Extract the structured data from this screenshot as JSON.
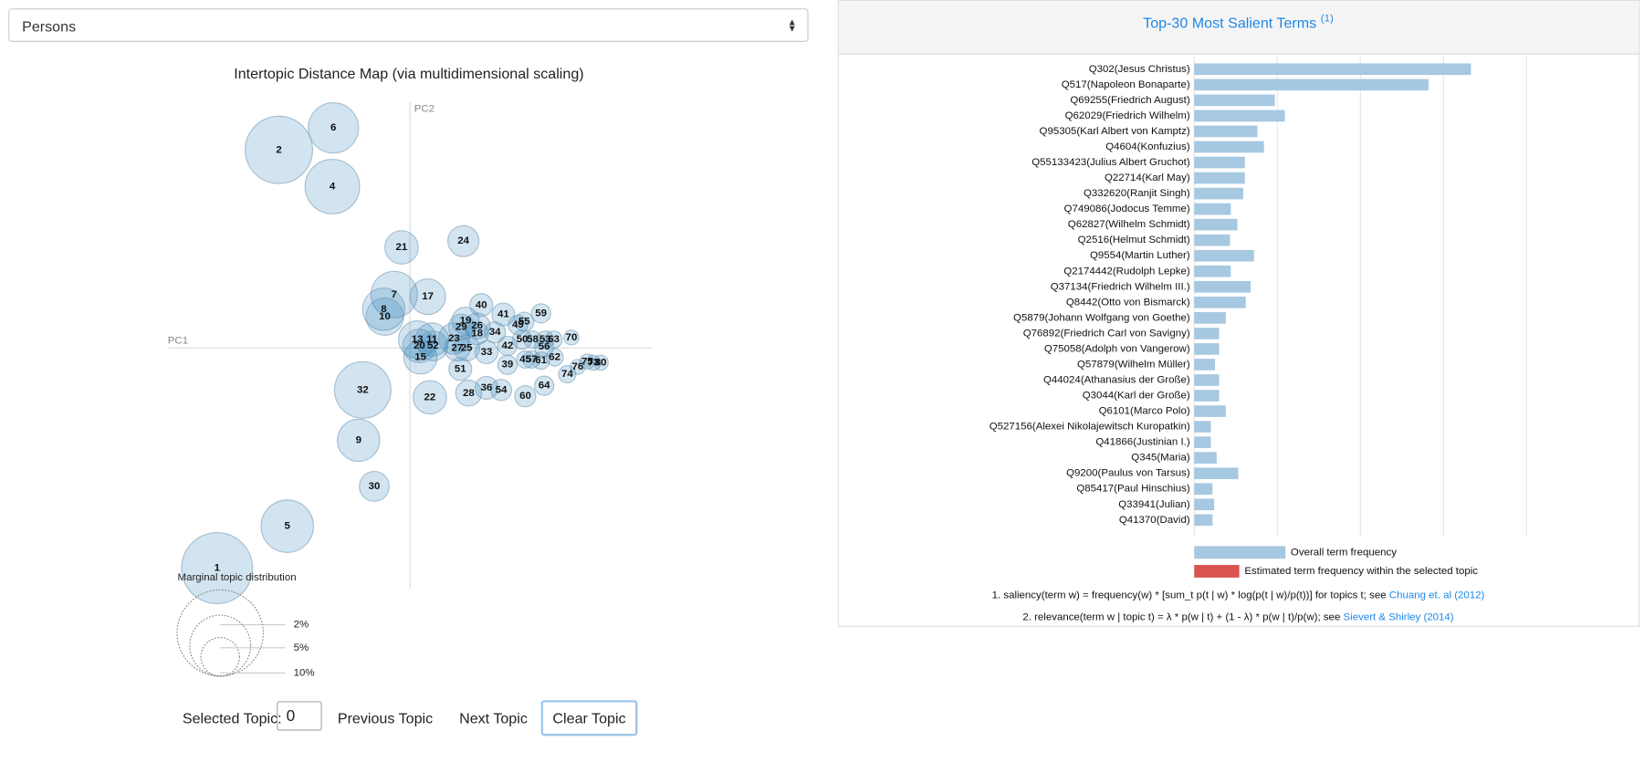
{
  "topic_selector": "Persons",
  "chart_data": [
    {
      "type": "bubble",
      "title": "Intertopic Distance Map (via multidimensional scaling)",
      "x_label": "PC1",
      "y_label": "PC2",
      "xlim": [
        -231,
        231
      ],
      "ylim": [
        -230,
        235
      ],
      "color": "#1f77b4",
      "labels": [
        "1",
        "2",
        "4",
        "5",
        "6",
        "32",
        "9",
        "7",
        "8",
        "10",
        "21",
        "24",
        "17",
        "22",
        "30",
        "13",
        "15",
        "20",
        "11",
        "52",
        "23",
        "27",
        "25",
        "19",
        "29",
        "26",
        "18",
        "33",
        "40",
        "41",
        "34",
        "28",
        "51",
        "36",
        "54",
        "60",
        "39",
        "42",
        "49",
        "55",
        "59",
        "50",
        "58",
        "53",
        "56",
        "45",
        "57",
        "61",
        "62",
        "63",
        "64",
        "70",
        "74",
        "76",
        "75",
        "73",
        "80"
      ],
      "x": [
        -184,
        -125,
        -74,
        -117,
        -73,
        -45,
        -49,
        -15,
        -25,
        -24,
        -8,
        51,
        17,
        19,
        -34,
        7,
        10,
        9,
        21,
        22,
        42,
        45,
        54,
        53,
        49,
        64,
        64,
        73,
        68,
        89,
        81,
        56,
        48,
        73,
        87,
        110,
        93,
        93,
        103,
        109,
        125,
        107,
        117,
        129,
        128,
        110,
        116,
        125,
        138,
        137,
        128,
        154,
        150,
        160,
        169,
        175,
        182
      ],
      "y": [
        -210,
        189,
        154,
        -170,
        210,
        -40,
        -88,
        51,
        37,
        30,
        96,
        102,
        49,
        -47,
        -132,
        8,
        -9,
        2,
        8,
        2,
        9,
        0,
        0,
        26,
        20,
        21,
        14,
        -4,
        41,
        32,
        15,
        -43,
        -20,
        -38,
        -40,
        -46,
        -16,
        2,
        22,
        25,
        33,
        8,
        8,
        8,
        1,
        -11,
        -11,
        -12,
        -9,
        8,
        -36,
        10,
        -25,
        -18,
        -13,
        -14,
        -14
      ],
      "sizes": [
        6.8,
        6.1,
        4.0,
        3.7,
        3.4,
        4.3,
        2.4,
        2.9,
        2.4,
        1.9,
        1.5,
        1.3,
        1.7,
        1.5,
        1.2,
        1.9,
        1.5,
        1.5,
        1.5,
        1.2,
        1.3,
        0.9,
        0.9,
        1.0,
        0.9,
        0.9,
        0.7,
        0.7,
        0.7,
        0.7,
        0.6,
        0.9,
        0.7,
        0.7,
        0.6,
        0.6,
        0.5,
        0.5,
        0.5,
        0.5,
        0.5,
        0.5,
        0.4,
        0.4,
        0.5,
        0.4,
        0.4,
        0.4,
        0.4,
        0.4,
        0.5,
        0.3,
        0.4,
        0.3,
        0.3,
        0.3,
        0.3
      ],
      "size_legend": {
        "title": "Marginal topic distribution",
        "ticks": [
          {
            "value": 2,
            "label": "2%"
          },
          {
            "value": 5,
            "label": "5%"
          },
          {
            "value": 10,
            "label": "10%"
          }
        ]
      }
    },
    {
      "type": "hbar",
      "title": "Top-30 Most Salient Terms",
      "title_note": "(1)",
      "categories": [
        "Q302(Jesus Christus)",
        "Q517(Napoleon Bonaparte)",
        "Q69255(Friedrich August)",
        "Q62029(Friedrich Wilhelm)",
        "Q95305(Karl Albert von Kamptz)",
        "Q4604(Konfuzius)",
        "Q55133423(Julius Albert Gruchot)",
        "Q22714(Karl May)",
        "Q332620(Ranjit Singh)",
        "Q749086(Jodocus Temme)",
        "Q62827(Wilhelm Schmidt)",
        "Q2516(Helmut Schmidt)",
        "Q9554(Martin Luther)",
        "Q2174442(Rudolph Lepke)",
        "Q37134(Friedrich Wilhelm III.)",
        "Q8442(Otto von Bismarck)",
        "Q5879(Johann Wolfgang von Goethe)",
        "Q76892(Friedrich Carl von Savigny)",
        "Q75058(Adolph von Vangerow)",
        "Q57879(Wilhelm Müller)",
        "Q44024(Athanasius der Große)",
        "Q3044(Karl der Große)",
        "Q6101(Marco Polo)",
        "Q527156(Alexei Nikolajewitsch Kuropatkin)",
        "Q41866(Justinian I.)",
        "Q345(Maria)",
        "Q9200(Paulus von Tarsus)",
        "Q85417(Paul Hinschius)",
        "Q33941(Julian)",
        "Q41370(David)"
      ],
      "values": [
        333,
        282,
        97,
        109,
        76,
        84,
        61,
        61,
        59,
        44,
        52,
        43,
        72,
        44,
        68,
        62,
        38,
        30,
        30,
        25,
        30,
        30,
        38,
        20,
        20,
        27,
        53,
        22,
        24,
        22
      ],
      "color": "#a6c8e1",
      "xlim": [
        0,
        400
      ],
      "xticks": [
        0,
        100,
        200,
        300,
        400
      ],
      "grid": true,
      "legend": [
        {
          "name": "Overall term frequency",
          "color": "#a6c8e1"
        },
        {
          "name": "Estimated term frequency within the selected topic",
          "color": "#d9534f"
        }
      ]
    }
  ],
  "controls": {
    "selected_label": "Selected Topic:",
    "selected_value": "0",
    "previous": "Previous Topic",
    "next": "Next Topic",
    "clear": "Clear Topic"
  },
  "footnotes": [
    {
      "text": "1. saliency(term w) = frequency(w) * [sum_t p(t | w) * log(p(t | w)/p(t))] for topics t; see ",
      "link": "Chuang et. al (2012)"
    },
    {
      "text": "2. relevance(term w | topic t) = λ * p(w | t) + (1 - λ) * p(w | t)/p(w); see ",
      "link": "Sievert & Shirley (2014)"
    }
  ]
}
